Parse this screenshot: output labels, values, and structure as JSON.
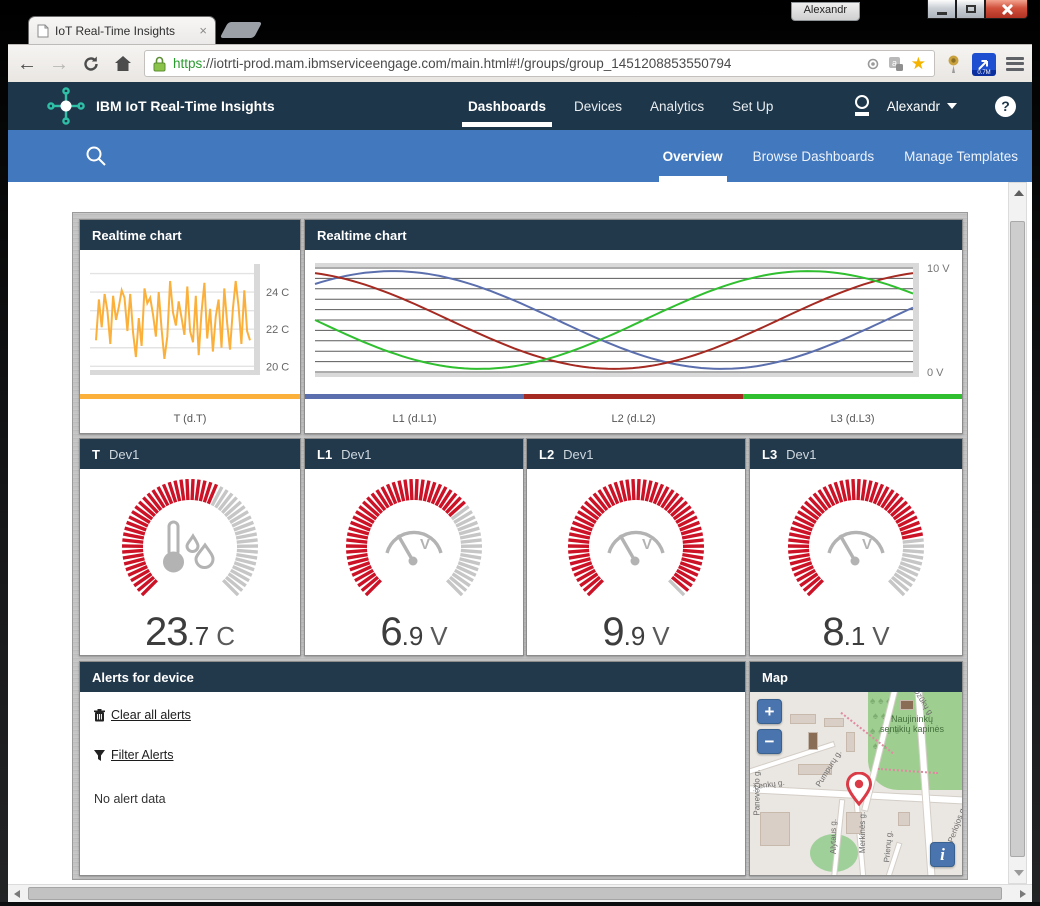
{
  "browser": {
    "tab_title": "IoT Real-Time Insights",
    "tab_close": "×",
    "url_scheme": "https",
    "url_rest": "://iotrti-prod.mam.ibmserviceengage.com/main.html#!/groups/group_1451208853550794",
    "profile_name": "Alexandr",
    "bookmark_star": "★",
    "ext_badge_label": "0.7M"
  },
  "header": {
    "app_title": "IBM IoT Real-Time Insights",
    "nav": [
      {
        "label": "Dashboards"
      },
      {
        "label": "Devices"
      },
      {
        "label": "Analytics"
      },
      {
        "label": "Set Up"
      }
    ],
    "user_name": "Alexandr",
    "help_glyph": "?"
  },
  "subnav": {
    "items": [
      {
        "label": "Overview"
      },
      {
        "label": "Browse Dashboards"
      },
      {
        "label": "Manage Templates"
      }
    ]
  },
  "panels": {
    "chart_small_title": "Realtime chart",
    "chart_large_title": "Realtime chart",
    "alerts": {
      "title": "Alerts for device",
      "clear_label": "Clear all alerts",
      "filter_label": "Filter Alerts",
      "empty_text": "No alert data"
    },
    "map": {
      "title": "Map",
      "zoom_in": "+",
      "zoom_out": "−",
      "info": "i",
      "place_label": "Naujininkų sentikių kapinės",
      "streets": [
        "Lenkų g.",
        "Panevėžio g.",
        "Pumpurų g.",
        "Alytaus g.",
        "Merkinės g.",
        "Dzūkų g.",
        "Perlojos g.",
        "Prienų g."
      ]
    }
  },
  "gauges": [
    {
      "param": "T",
      "device": "Dev1",
      "value_main": "23",
      "value_frac": ".7",
      "unit": "C",
      "fraction": 0.6,
      "icon": "thermometer"
    },
    {
      "param": "L1",
      "device": "Dev1",
      "value_main": "6",
      "value_frac": ".9",
      "unit": "V",
      "fraction": 0.69,
      "icon": "voltmeter"
    },
    {
      "param": "L2",
      "device": "Dev1",
      "value_main": "9",
      "value_frac": ".9",
      "unit": "V",
      "fraction": 0.99,
      "icon": "voltmeter"
    },
    {
      "param": "L3",
      "device": "Dev1",
      "value_main": "8",
      "value_frac": ".1",
      "unit": "V",
      "fraction": 0.81,
      "icon": "voltmeter"
    }
  ],
  "chart_data": [
    {
      "type": "line",
      "title": "Realtime chart",
      "series_label": "T (d.T)",
      "line_color": "#fbb03b",
      "ylim": [
        19.8,
        25.3
      ],
      "grid_values": [
        20,
        21,
        22,
        23,
        24,
        25
      ],
      "yticks": [
        {
          "value": 24,
          "label": "24 C"
        },
        {
          "value": 22,
          "label": "22 C"
        },
        {
          "value": 20,
          "label": "20 C"
        }
      ],
      "values": [
        21.4,
        23.6,
        22.1,
        23.9,
        23.0,
        21.2,
        23.8,
        22.5,
        23.2,
        24.1,
        23.7,
        21.9,
        23.9,
        21.8,
        20.5,
        22.6,
        21.1,
        24.2,
        23.4,
        23.7,
        22.8,
        21.6,
        24.0,
        22.0,
        20.4,
        21.6,
        24.6,
        22.9,
        22.2,
        23.5,
        22.6,
        21.7,
        24.3,
        21.9,
        21.3,
        23.8,
        20.6,
        22.9,
        24.5,
        21.5,
        23.1,
        20.8,
        22.7,
        23.6,
        21.0,
        24.2,
        22.3,
        20.9,
        23.1,
        24.6,
        23.2,
        21.2,
        24.1,
        21.9,
        21.4
      ]
    },
    {
      "type": "line",
      "title": "Realtime chart",
      "ylim": [
        0,
        10
      ],
      "grid_count": 11,
      "yticks": [
        {
          "value": 10,
          "label": "10 V"
        },
        {
          "value": 0,
          "label": "0 V"
        }
      ],
      "wave": {
        "offset": 5,
        "amplitude": 4.7,
        "period": 1.1
      },
      "series": [
        {
          "name": "L1 (d.L1)",
          "color": "#5b6fae",
          "peak_x": 0.13
        },
        {
          "name": "L2 (d.L2)",
          "color": "#a52a22",
          "peak_x": -0.05
        },
        {
          "name": "L3 (d.L3)",
          "color": "#2fbf2f",
          "peak_x": 0.825
        }
      ]
    }
  ],
  "colors": {
    "gauge_red": "#cc1226",
    "gauge_gray": "#c6c6c6",
    "icon_gray": "#b3b3b3",
    "grid_light": "#e3e3e3",
    "grid_dark": "#5a5a5a",
    "frame_gray": "#d9d9d9"
  }
}
